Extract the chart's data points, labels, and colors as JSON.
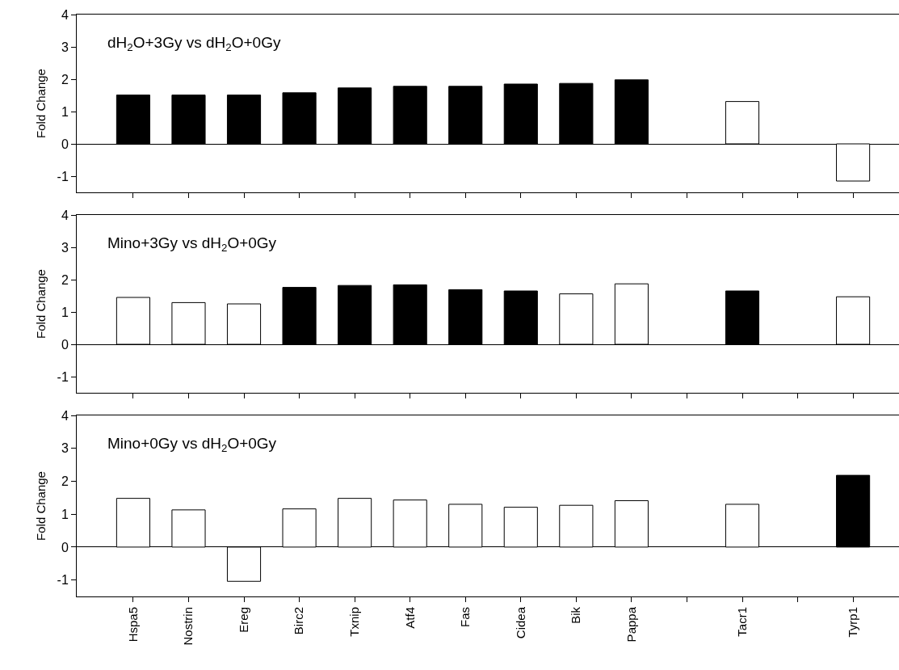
{
  "chart_data": [
    {
      "type": "bar",
      "title": "dH$_{2}$O+3Gy vs dH$_{2}$O+0Gy",
      "ylabel": "Fold Change",
      "categories": [
        null,
        null,
        null,
        null,
        null,
        null,
        null,
        null,
        null,
        null,
        null,
        null,
        null,
        null
      ],
      "values": [
        1.51,
        1.51,
        1.51,
        1.58,
        1.73,
        1.78,
        1.78,
        1.85,
        1.87,
        1.98,
        null,
        1.31,
        null,
        -1.15
      ],
      "colors": [
        "#000000",
        "#000000",
        "#000000",
        "#000000",
        "#000000",
        "#000000",
        "#000000",
        "#000000",
        "#000000",
        "#000000",
        "#ffffff",
        "#ffffff",
        "#ffffff",
        "#ffffff"
      ],
      "ylim": [
        -1.5,
        4
      ],
      "yticks": [
        -1,
        0,
        1,
        2,
        3,
        4
      ],
      "tick_labels": "y"
    },
    {
      "type": "bar",
      "title": "Mino+3Gy vs dH$_{2}$O+0Gy",
      "ylabel": "Fold Change",
      "categories": [
        null,
        null,
        null,
        null,
        null,
        null,
        null,
        null,
        null,
        null,
        null,
        null,
        null,
        null
      ],
      "values": [
        1.45,
        1.29,
        1.25,
        1.76,
        1.82,
        1.84,
        1.69,
        1.65,
        1.56,
        1.87,
        null,
        1.65,
        null,
        1.47
      ],
      "colors": [
        "#ffffff",
        "#ffffff",
        "#ffffff",
        "#000000",
        "#000000",
        "#000000",
        "#000000",
        "#000000",
        "#ffffff",
        "#ffffff",
        "#ffffff",
        "#000000",
        "#ffffff",
        "#ffffff"
      ],
      "ylim": [
        -1.5,
        4
      ],
      "yticks": [
        -1,
        0,
        1,
        2,
        3,
        4
      ],
      "tick_labels": "y"
    },
    {
      "type": "bar",
      "title": "Mino+0Gy vs dH$_{2}$O+0Gy",
      "ylabel": "Fold Change",
      "categories": [
        "Hspa5",
        "Nostrin",
        "Ereg",
        "Birc2",
        "Txnip",
        "Atf4",
        "Fas",
        "Cidea",
        "Bik",
        "Pappa",
        null,
        "Tacr1",
        null,
        "Tyrp1"
      ],
      "values": [
        1.48,
        1.13,
        -1.04,
        1.16,
        1.48,
        1.43,
        1.3,
        1.21,
        1.27,
        1.41,
        null,
        1.3,
        null,
        2.18
      ],
      "colors": [
        "#ffffff",
        "#ffffff",
        "#ffffff",
        "#ffffff",
        "#ffffff",
        "#ffffff",
        "#ffffff",
        "#ffffff",
        "#ffffff",
        "#ffffff",
        "#ffffff",
        "#ffffff",
        "#ffffff",
        "#000000"
      ],
      "ylim": [
        -1.5,
        4
      ],
      "yticks": [
        -1,
        0,
        1,
        2,
        3,
        4
      ]
    }
  ]
}
